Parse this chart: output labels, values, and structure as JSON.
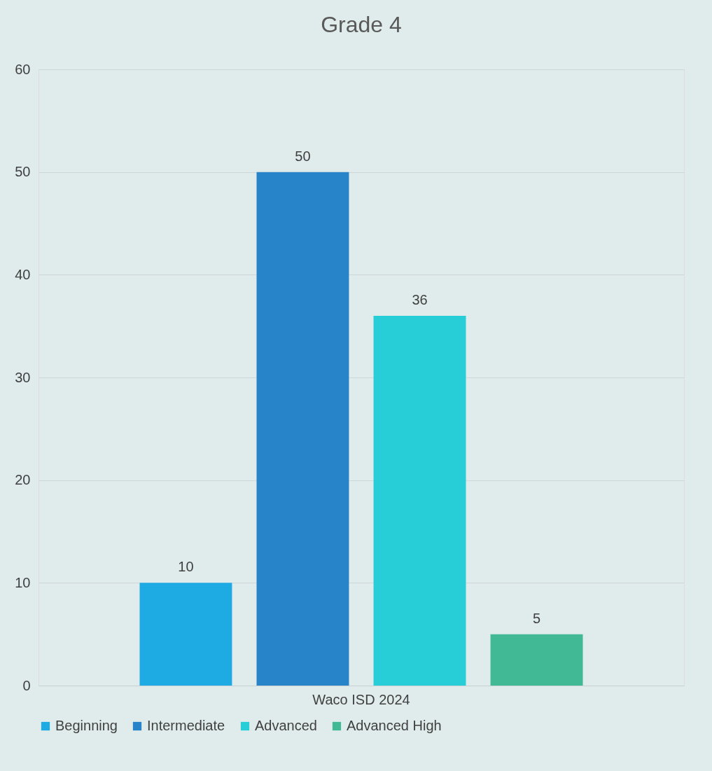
{
  "chart_data": {
    "type": "bar",
    "title": "Grade 4",
    "categories": [
      "Waco ISD 2024"
    ],
    "series": [
      {
        "name": "Beginning",
        "color": "#1eaae3",
        "values": [
          10
        ]
      },
      {
        "name": "Intermediate",
        "color": "#2784c8",
        "values": [
          50
        ]
      },
      {
        "name": "Advanced",
        "color": "#27ced8",
        "values": [
          36
        ]
      },
      {
        "name": "Advanced High",
        "color": "#40b994",
        "values": [
          5
        ]
      }
    ],
    "ylim": [
      0,
      60
    ],
    "yticks": [
      0,
      10,
      20,
      30,
      40,
      50,
      60
    ],
    "grid": "y",
    "legend": "bottom",
    "data_labels": true
  }
}
